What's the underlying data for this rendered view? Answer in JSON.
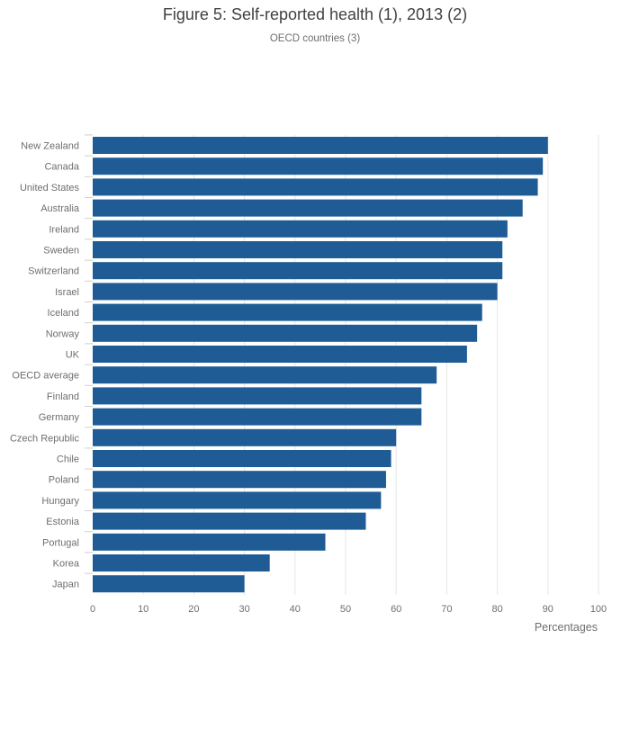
{
  "chart_data": {
    "type": "bar",
    "orientation": "horizontal",
    "title": "Figure 5: Self-reported health (1), 2013 (2)",
    "subtitle": "OECD countries (3)",
    "xlabel": "Percentages",
    "ylabel": "",
    "xlim": [
      0,
      100
    ],
    "xticks": [
      0,
      10,
      20,
      30,
      40,
      50,
      60,
      70,
      80,
      90,
      100
    ],
    "grid": true,
    "bar_color": "#1f5c96",
    "categories": [
      "New Zealand",
      "Canada",
      "United States",
      "Australia",
      "Ireland",
      "Sweden",
      "Switzerland",
      "Israel",
      "Iceland",
      "Norway",
      "UK",
      "OECD average",
      "Finland",
      "Germany",
      "Czech Republic",
      "Chile",
      "Poland",
      "Hungary",
      "Estonia",
      "Portugal",
      "Korea",
      "Japan"
    ],
    "values": [
      90,
      89,
      88,
      85,
      82,
      81,
      81,
      80,
      77,
      76,
      74,
      68,
      65,
      65,
      60,
      59,
      58,
      57,
      54,
      46,
      35,
      30
    ]
  }
}
